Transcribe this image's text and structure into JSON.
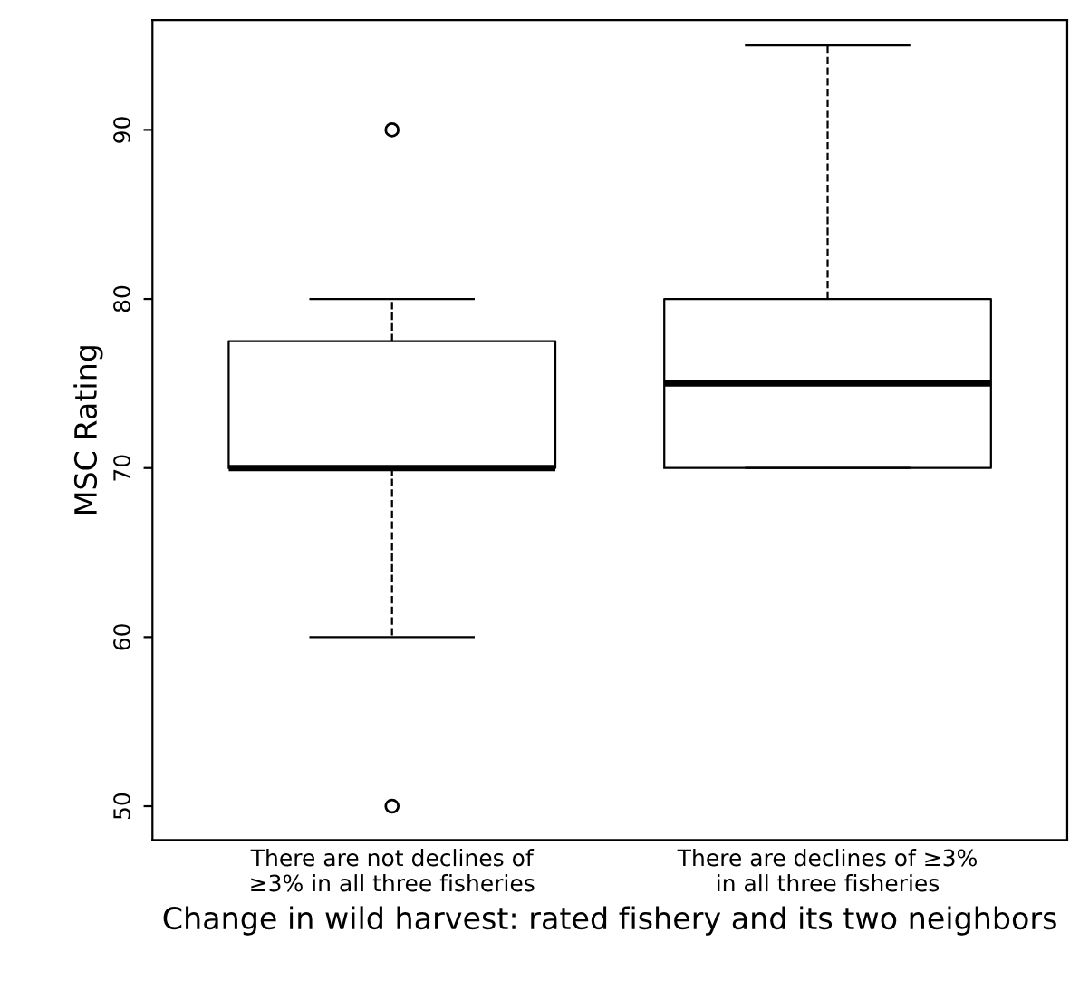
{
  "chart_data": {
    "type": "box",
    "xlabel": "Change in wild harvest: rated fishery and its two neighbors",
    "ylabel": "MSC Rating",
    "categories": [
      "There are not declines of\n≥3% in all three fisheries",
      "There are declines of ≥3%\nin all three fisheries"
    ],
    "boxes": [
      {
        "low": 60,
        "q1": 70,
        "median": 70,
        "q3": 77.5,
        "high": 80,
        "outliers": [
          90,
          50
        ]
      },
      {
        "low": 70,
        "q1": 70,
        "median": 75,
        "q3": 80,
        "high": 95
      }
    ],
    "ylim": [
      48,
      96.5
    ],
    "yticks": [
      50,
      60,
      70,
      80,
      90
    ],
    "grid": false,
    "legend": false
  }
}
